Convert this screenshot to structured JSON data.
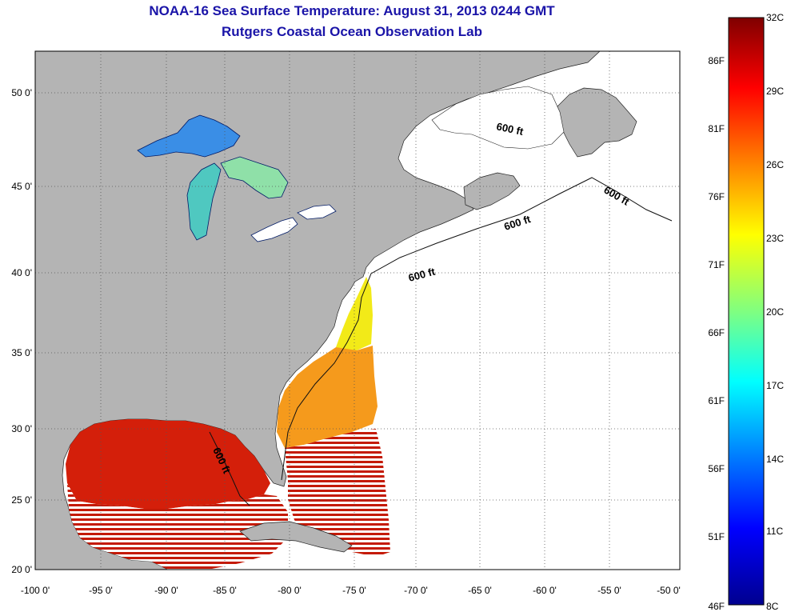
{
  "title": "NOAA-16 Sea Surface Temperature:  August 31, 2013 0244 GMT",
  "subtitle": "Rutgers Coastal Ocean Observation Lab",
  "map": {
    "lon_ticks": [
      "-100 0'",
      "-95 0'",
      "-90 0'",
      "-85 0'",
      "-80 0'",
      "-75 0'",
      "-70 0'",
      "-65 0'",
      "-60 0'",
      "-55 0'",
      "-50 0'"
    ],
    "lat_ticks": [
      "20 0'",
      "25 0'",
      "30 0'",
      "35 0'",
      "40 0'",
      "45 0'",
      "50 0'"
    ],
    "isobath_labels": [
      "600 ft",
      "600 ft",
      "600 ft",
      "600 ft",
      "600 ft"
    ],
    "colors": {
      "land": "#b4b4b4",
      "ocean_nodata": "#ffffff",
      "grid": "#555555"
    }
  },
  "colorbar": {
    "celsius": [
      "32C",
      "29C",
      "26C",
      "23C",
      "20C",
      "17C",
      "14C",
      "11C",
      "8C"
    ],
    "fahrenheit": [
      "86F",
      "81F",
      "76F",
      "71F",
      "66F",
      "61F",
      "56F",
      "51F",
      "46F"
    ],
    "colors": [
      "#7f0000",
      "#ff0000",
      "#ff8000",
      "#ffff00",
      "#80ff80",
      "#00ffff",
      "#0080ff",
      "#0000ff",
      "#00008f"
    ]
  }
}
